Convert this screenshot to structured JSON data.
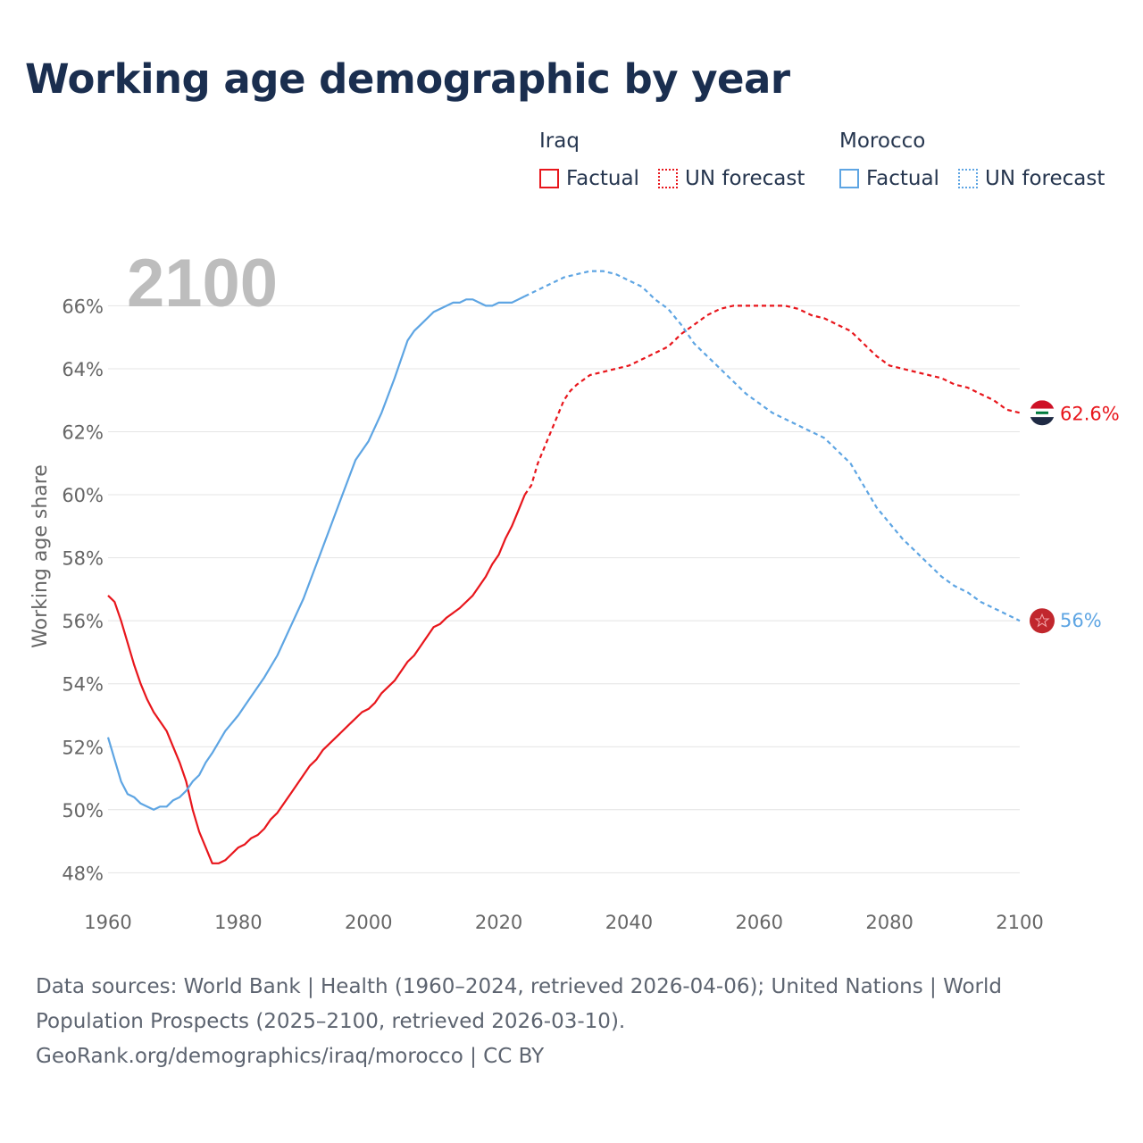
{
  "title": "Working age demographic by year",
  "legend": {
    "iraq": {
      "label": "Iraq",
      "factual": "Factual",
      "forecast": "UN forecast"
    },
    "morocco": {
      "label": "Morocco",
      "factual": "Factual",
      "forecast": "UN forecast"
    }
  },
  "colors": {
    "iraq": "#e8161c",
    "morocco": "#5ea5e3",
    "grid": "#e4e4e4",
    "axis_text": "#666666",
    "year_watermark": "#bdbdbd"
  },
  "year_watermark": "2100",
  "end_labels": {
    "iraq": "62.6%",
    "morocco": "56%"
  },
  "flags": {
    "iraq": "iraq-flag-icon",
    "morocco": "morocco-flag-icon"
  },
  "sources": {
    "line1": "Data sources: World Bank | Health (1960–2024, retrieved 2026-04-06); United Nations | World",
    "line2": "Population Prospects (2025–2100, retrieved 2026-03-10).",
    "line3": "GeoRank.org/demographics/iraq/morocco | CC BY"
  },
  "chart_data": {
    "type": "line",
    "title": "Working age demographic by year",
    "xlabel": "",
    "ylabel": "Working age share",
    "xlim": [
      1960,
      2100
    ],
    "ylim": [
      47.5,
      67.4
    ],
    "x_ticks": [
      1960,
      1980,
      2000,
      2020,
      2040,
      2060,
      2080,
      2100
    ],
    "x_tick_labels": [
      "1960",
      "1980",
      "2000",
      "2020",
      "2040",
      "2060",
      "2080",
      "2100"
    ],
    "y_ticks": [
      48,
      50,
      52,
      54,
      56,
      58,
      60,
      62,
      64,
      66
    ],
    "y_tick_labels": [
      "48%",
      "50%",
      "52%",
      "54%",
      "56%",
      "58%",
      "60%",
      "62%",
      "64%",
      "66%"
    ],
    "grid": true,
    "legend_position": "top-right",
    "factual_range": [
      1960,
      2024
    ],
    "forecast_range": [
      2024,
      2100
    ],
    "series": [
      {
        "name": "Iraq",
        "x": [
          1960,
          1961,
          1962,
          1963,
          1964,
          1965,
          1966,
          1967,
          1968,
          1969,
          1970,
          1971,
          1972,
          1973,
          1974,
          1975,
          1976,
          1977,
          1978,
          1980,
          1981,
          1982,
          1983,
          1984,
          1985,
          1986,
          1988,
          1990,
          1991,
          1992,
          1993,
          1995,
          1997,
          1999,
          2000,
          2001,
          2002,
          2004,
          2006,
          2007,
          2008,
          2010,
          2011,
          2012,
          2014,
          2016,
          2018,
          2019,
          2020,
          2021,
          2022,
          2023,
          2024,
          2025,
          2026,
          2028,
          2030,
          2031,
          2032,
          2034,
          2036,
          2038,
          2040,
          2042,
          2044,
          2046,
          2048,
          2050,
          2052,
          2054,
          2056,
          2058,
          2060,
          2062,
          2064,
          2066,
          2068,
          2070,
          2072,
          2074,
          2076,
          2078,
          2080,
          2082,
          2084,
          2086,
          2088,
          2090,
          2092,
          2094,
          2096,
          2098,
          2100
        ],
        "values": [
          56.8,
          56.6,
          56.0,
          55.3,
          54.6,
          54.0,
          53.5,
          53.1,
          52.8,
          52.5,
          52.0,
          51.5,
          50.9,
          50.0,
          49.3,
          48.8,
          48.3,
          48.3,
          48.4,
          48.8,
          48.9,
          49.1,
          49.2,
          49.4,
          49.7,
          49.9,
          50.5,
          51.1,
          51.4,
          51.6,
          51.9,
          52.3,
          52.7,
          53.1,
          53.2,
          53.4,
          53.7,
          54.1,
          54.7,
          54.9,
          55.2,
          55.8,
          55.9,
          56.1,
          56.4,
          56.8,
          57.4,
          57.8,
          58.1,
          58.6,
          59.0,
          59.5,
          60.0,
          60.3,
          61.0,
          62.0,
          63.0,
          63.3,
          63.5,
          63.8,
          63.9,
          64.0,
          64.1,
          64.3,
          64.5,
          64.7,
          65.1,
          65.4,
          65.7,
          65.9,
          66.0,
          66.0,
          66.0,
          66.0,
          66.0,
          65.9,
          65.7,
          65.6,
          65.4,
          65.2,
          64.8,
          64.4,
          64.1,
          64.0,
          63.9,
          63.8,
          63.7,
          63.5,
          63.4,
          63.2,
          63.0,
          62.7,
          62.6
        ]
      },
      {
        "name": "Morocco",
        "x": [
          1960,
          1961,
          1962,
          1963,
          1964,
          1965,
          1966,
          1967,
          1968,
          1969,
          1970,
          1971,
          1972,
          1973,
          1974,
          1975,
          1976,
          1978,
          1980,
          1981,
          1982,
          1984,
          1986,
          1988,
          1990,
          1992,
          1994,
          1996,
          1998,
          2000,
          2002,
          2004,
          2006,
          2007,
          2008,
          2010,
          2011,
          2012,
          2013,
          2014,
          2015,
          2016,
          2017,
          2018,
          2019,
          2020,
          2021,
          2022,
          2023,
          2024,
          2026,
          2028,
          2030,
          2032,
          2034,
          2036,
          2038,
          2040,
          2042,
          2044,
          2046,
          2048,
          2050,
          2052,
          2054,
          2056,
          2058,
          2060,
          2062,
          2064,
          2066,
          2068,
          2070,
          2072,
          2074,
          2076,
          2078,
          2080,
          2082,
          2084,
          2086,
          2088,
          2090,
          2092,
          2094,
          2096,
          2098,
          2100
        ],
        "values": [
          52.3,
          51.6,
          50.9,
          50.5,
          50.4,
          50.2,
          50.1,
          50.0,
          50.1,
          50.1,
          50.3,
          50.4,
          50.6,
          50.9,
          51.1,
          51.5,
          51.8,
          52.5,
          53.0,
          53.3,
          53.6,
          54.2,
          54.9,
          55.8,
          56.7,
          57.8,
          58.9,
          60.0,
          61.1,
          61.7,
          62.6,
          63.7,
          64.9,
          65.2,
          65.4,
          65.8,
          65.9,
          66.0,
          66.1,
          66.1,
          66.2,
          66.2,
          66.1,
          66.0,
          66.0,
          66.1,
          66.1,
          66.1,
          66.2,
          66.3,
          66.5,
          66.7,
          66.9,
          67.0,
          67.1,
          67.1,
          67.0,
          66.8,
          66.6,
          66.2,
          65.9,
          65.4,
          64.8,
          64.4,
          64.0,
          63.6,
          63.2,
          62.9,
          62.6,
          62.4,
          62.2,
          62.0,
          61.8,
          61.4,
          61.0,
          60.3,
          59.6,
          59.1,
          58.6,
          58.2,
          57.8,
          57.4,
          57.1,
          56.9,
          56.6,
          56.4,
          56.2,
          56.0
        ]
      }
    ]
  }
}
